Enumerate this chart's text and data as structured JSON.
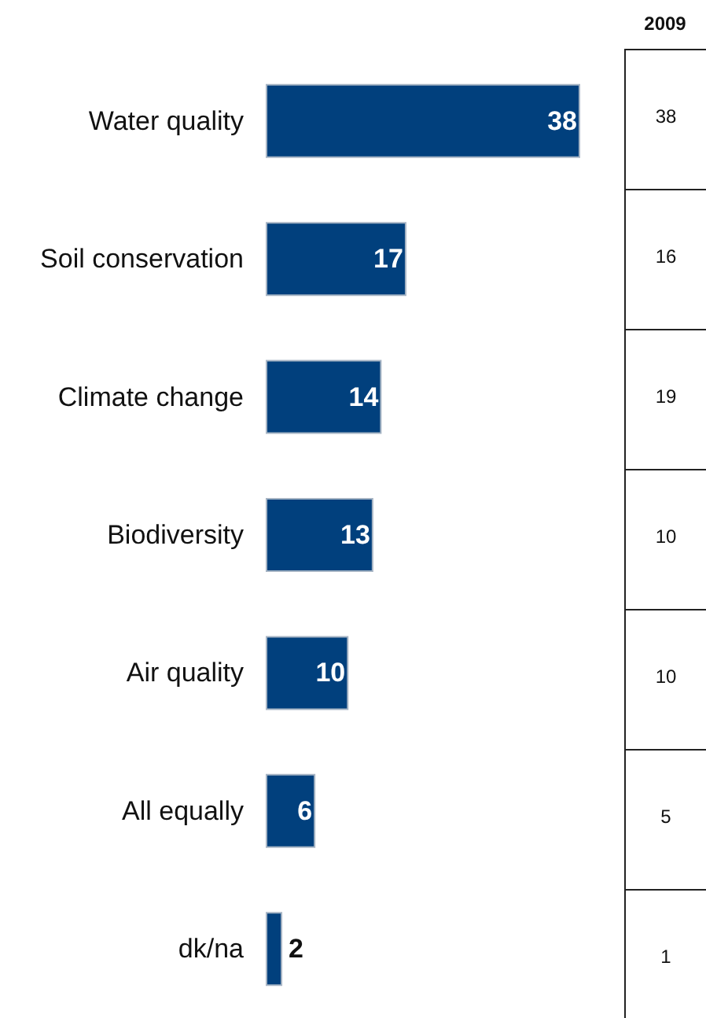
{
  "chart_data": [
    {
      "type": "bar",
      "orientation": "horizontal",
      "categories": [
        "Water quality",
        "Soil conservation",
        "Climate change",
        "Biodiversity",
        "Air quality",
        "All equally",
        "dk/na"
      ],
      "values": [
        38,
        17,
        14,
        13,
        10,
        6,
        2
      ],
      "color": "#01407d",
      "data_labels": true
    },
    {
      "type": "other",
      "title": "2009",
      "annotations": [
        "38",
        "16",
        "19",
        "10",
        "10",
        "5",
        "1"
      ]
    }
  ]
}
